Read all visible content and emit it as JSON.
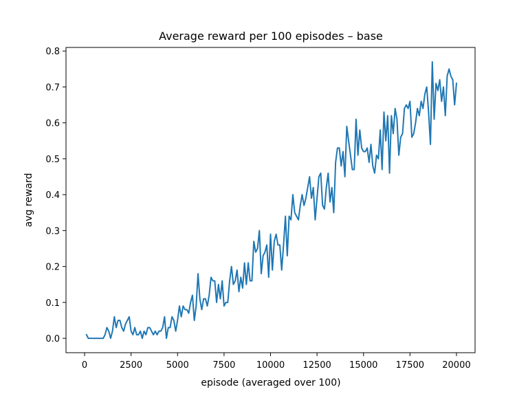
{
  "chart_data": {
    "type": "line",
    "title": "Average reward per 100 episodes – base",
    "xlabel": "episode (averaged over 100)",
    "ylabel": "avg reward",
    "xlim": [
      -1000,
      21000
    ],
    "ylim": [
      -0.04,
      0.81
    ],
    "xticks": [
      0,
      2500,
      5000,
      7500,
      10000,
      12500,
      15000,
      17500,
      20000
    ],
    "yticks": [
      0.0,
      0.1,
      0.2,
      0.3,
      0.4,
      0.5,
      0.6,
      0.7,
      0.8
    ],
    "xtick_labels": [
      "0",
      "2500",
      "5000",
      "7500",
      "10000",
      "12500",
      "15000",
      "17500",
      "20000"
    ],
    "ytick_labels": [
      "0.0",
      "0.1",
      "0.2",
      "0.3",
      "0.4",
      "0.5",
      "0.6",
      "0.7",
      "0.8"
    ],
    "grid": false,
    "series": [
      {
        "color": "#1f77b4",
        "x": [
          100,
          200,
          300,
          400,
          500,
          600,
          700,
          800,
          900,
          1000,
          1100,
          1200,
          1300,
          1400,
          1500,
          1600,
          1700,
          1800,
          1900,
          2000,
          2100,
          2200,
          2300,
          2400,
          2500,
          2600,
          2700,
          2800,
          2900,
          3000,
          3100,
          3200,
          3300,
          3400,
          3500,
          3600,
          3700,
          3800,
          3900,
          4000,
          4100,
          4200,
          4300,
          4400,
          4500,
          4600,
          4700,
          4800,
          4900,
          5000,
          5100,
          5200,
          5300,
          5400,
          5500,
          5600,
          5700,
          5800,
          5900,
          6000,
          6100,
          6200,
          6300,
          6400,
          6500,
          6600,
          6700,
          6800,
          6900,
          7000,
          7100,
          7200,
          7300,
          7400,
          7500,
          7600,
          7700,
          7800,
          7900,
          8000,
          8100,
          8200,
          8300,
          8400,
          8500,
          8600,
          8700,
          8800,
          8900,
          9000,
          9100,
          9200,
          9300,
          9400,
          9500,
          9600,
          9700,
          9800,
          9900,
          10000,
          10100,
          10200,
          10300,
          10400,
          10500,
          10600,
          10700,
          10800,
          10900,
          11000,
          11100,
          11200,
          11300,
          11400,
          11500,
          11600,
          11700,
          11800,
          11900,
          12000,
          12100,
          12200,
          12300,
          12400,
          12500,
          12600,
          12700,
          12800,
          12900,
          13000,
          13100,
          13200,
          13300,
          13400,
          13500,
          13600,
          13700,
          13800,
          13900,
          14000,
          14100,
          14200,
          14300,
          14400,
          14500,
          14600,
          14700,
          14800,
          14900,
          15000,
          15100,
          15200,
          15300,
          15400,
          15500,
          15600,
          15700,
          15800,
          15900,
          16000,
          16100,
          16200,
          16300,
          16400,
          16500,
          16600,
          16700,
          16800,
          16900,
          17000,
          17100,
          17200,
          17300,
          17400,
          17500,
          17600,
          17700,
          17800,
          17900,
          18000,
          18100,
          18200,
          18300,
          18400,
          18500,
          18600,
          18700,
          18800,
          18900,
          19000,
          19100,
          19200,
          19300,
          19400,
          19500,
          19600,
          19700,
          19800,
          19900,
          20000
        ],
        "y": [
          0.01,
          0.0,
          0.0,
          0.0,
          0.0,
          0.0,
          0.0,
          0.0,
          0.0,
          0.0,
          0.01,
          0.03,
          0.02,
          0.0,
          0.02,
          0.06,
          0.03,
          0.05,
          0.05,
          0.03,
          0.02,
          0.04,
          0.05,
          0.06,
          0.02,
          0.01,
          0.03,
          0.01,
          0.01,
          0.02,
          0.0,
          0.02,
          0.01,
          0.03,
          0.03,
          0.02,
          0.01,
          0.02,
          0.01,
          0.02,
          0.02,
          0.03,
          0.06,
          0.0,
          0.03,
          0.03,
          0.06,
          0.05,
          0.02,
          0.05,
          0.09,
          0.06,
          0.09,
          0.08,
          0.08,
          0.07,
          0.1,
          0.12,
          0.05,
          0.09,
          0.18,
          0.11,
          0.08,
          0.11,
          0.11,
          0.09,
          0.12,
          0.17,
          0.16,
          0.16,
          0.1,
          0.15,
          0.11,
          0.16,
          0.09,
          0.1,
          0.1,
          0.16,
          0.2,
          0.15,
          0.16,
          0.19,
          0.13,
          0.17,
          0.14,
          0.21,
          0.15,
          0.21,
          0.16,
          0.16,
          0.27,
          0.24,
          0.25,
          0.3,
          0.18,
          0.23,
          0.24,
          0.26,
          0.17,
          0.29,
          0.19,
          0.27,
          0.29,
          0.26,
          0.26,
          0.19,
          0.26,
          0.34,
          0.23,
          0.34,
          0.33,
          0.4,
          0.35,
          0.34,
          0.33,
          0.37,
          0.4,
          0.37,
          0.39,
          0.42,
          0.45,
          0.39,
          0.42,
          0.33,
          0.39,
          0.45,
          0.46,
          0.37,
          0.36,
          0.42,
          0.46,
          0.38,
          0.42,
          0.35,
          0.49,
          0.53,
          0.53,
          0.48,
          0.52,
          0.45,
          0.59,
          0.55,
          0.51,
          0.47,
          0.47,
          0.61,
          0.51,
          0.58,
          0.53,
          0.52,
          0.52,
          0.53,
          0.49,
          0.54,
          0.48,
          0.46,
          0.51,
          0.5,
          0.58,
          0.47,
          0.63,
          0.55,
          0.62,
          0.46,
          0.62,
          0.57,
          0.64,
          0.61,
          0.51,
          0.56,
          0.57,
          0.64,
          0.65,
          0.64,
          0.66,
          0.56,
          0.57,
          0.6,
          0.64,
          0.62,
          0.66,
          0.64,
          0.68,
          0.7,
          0.63,
          0.54,
          0.77,
          0.61,
          0.71,
          0.69,
          0.72,
          0.66,
          0.7,
          0.62,
          0.73,
          0.75,
          0.73,
          0.72,
          0.65,
          0.71
        ]
      }
    ]
  }
}
